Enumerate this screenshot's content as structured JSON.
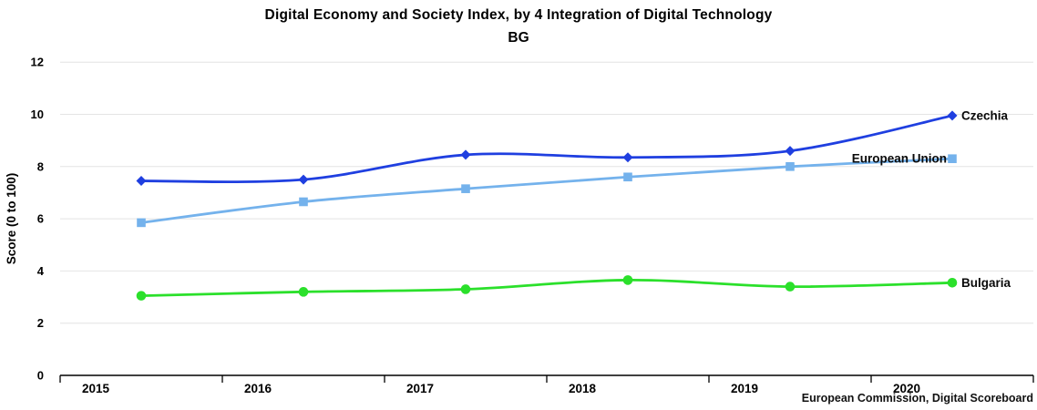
{
  "title": "Digital Economy and Society Index, by 4 Integration of Digital Technology",
  "subtitle": "BG",
  "source": "European Commission, Digital Scoreboard",
  "chart_data": {
    "type": "line",
    "title": "Digital Economy and Society Index, by 4 Integration of Digital Technology",
    "subtitle": "BG",
    "xlabel": "",
    "ylabel": "Score (0 to 100)",
    "x": [
      2015,
      2016,
      2017,
      2018,
      2019,
      2020
    ],
    "x_point_offset_years": 0.5,
    "xlim": [
      2015,
      2021
    ],
    "ylim": [
      0,
      12
    ],
    "yticks": [
      0,
      2,
      4,
      6,
      8,
      10,
      12
    ],
    "grid": "horizontal",
    "grid_color": "#e4e4e4",
    "axis_color": "#000000",
    "legend_position": "end-of-line-labels",
    "series": [
      {
        "name": "Czechia",
        "color": "#1f3fe0",
        "marker": "diamond",
        "label_side": "right",
        "values": [
          7.45,
          7.5,
          8.45,
          8.35,
          8.6,
          9.95
        ]
      },
      {
        "name": "European Union",
        "color": "#74b2ec",
        "marker": "square",
        "label_side": "left",
        "values": [
          5.85,
          6.65,
          7.15,
          7.6,
          8.0,
          8.3
        ]
      },
      {
        "name": "Bulgaria",
        "color": "#2be02b",
        "marker": "circle",
        "label_side": "right",
        "values": [
          3.05,
          3.2,
          3.3,
          3.65,
          3.4,
          3.55
        ]
      }
    ]
  }
}
